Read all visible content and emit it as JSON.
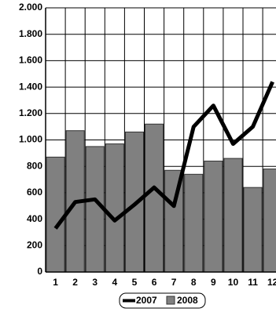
{
  "chart_data": {
    "type": "bar-line",
    "categories": [
      "1",
      "2",
      "3",
      "4",
      "5",
      "6",
      "7",
      "8",
      "9",
      "10",
      "11",
      "12"
    ],
    "series": [
      {
        "name": "2008",
        "type": "bar",
        "color": "#808080",
        "values": [
          870,
          1070,
          950,
          970,
          1060,
          1120,
          770,
          740,
          840,
          860,
          640,
          780
        ]
      },
      {
        "name": "2007",
        "type": "line",
        "color": "#000000",
        "values": [
          330,
          530,
          550,
          390,
          510,
          640,
          500,
          1100,
          1260,
          970,
          1100,
          1440
        ]
      }
    ],
    "ylim": [
      0,
      2000
    ],
    "yticks": [
      0,
      200,
      400,
      600,
      800,
      {
        "value": 1000,
        "label": "1.000"
      },
      {
        "value": 1200,
        "label": "1.200"
      },
      {
        "value": 1400,
        "label": "1.400"
      },
      {
        "value": 1600,
        "label": "1.600"
      },
      {
        "value": 1800,
        "label": "1.800"
      },
      {
        "value": 2000,
        "label": "2.000"
      }
    ],
    "grid": true,
    "legend": "bottom"
  }
}
